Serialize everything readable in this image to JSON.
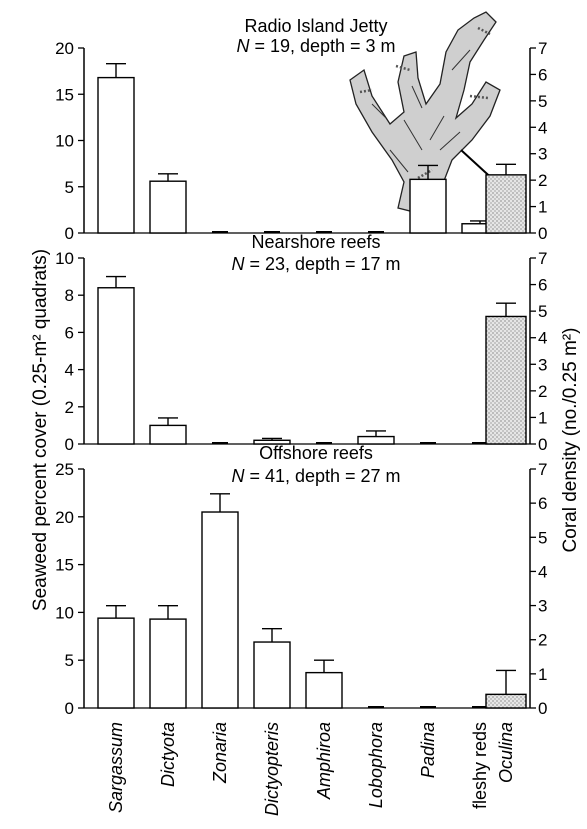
{
  "chart_data": {
    "type": "bar",
    "ylabel_left": "Seaweed percent cover (0.25-m² quadrats)",
    "ylabel_right": "Coral density (no./0.25 m²)",
    "categories": [
      "Sargassum",
      "Dictyota",
      "Zonaria",
      "Dictyopteris",
      "Amphiroa",
      "Lobophora",
      "Padina",
      "fleshy reds",
      "Oculina"
    ],
    "italic_categories": [
      "Sargassum",
      "Dictyota",
      "Zonaria",
      "Dictyopteris",
      "Amphiroa",
      "Lobophora",
      "Padina",
      "Oculina"
    ],
    "coral_category": "Oculina",
    "panels": [
      {
        "title": "Radio Island Jetty",
        "subtitle_n": "N",
        "subtitle_rest": " = 19, depth = 3 m",
        "left_ylim": [
          0,
          20
        ],
        "left_ticks": [
          0,
          5,
          10,
          15,
          20
        ],
        "right_ylim": [
          0,
          7
        ],
        "right_ticks": [
          0,
          1,
          2,
          3,
          4,
          5,
          6,
          7
        ],
        "seaweed_values": [
          16.8,
          5.6,
          0,
          0,
          0,
          0,
          5.8,
          1.0
        ],
        "seaweed_errors": [
          1.5,
          0.8,
          0,
          0,
          0,
          0,
          1.5,
          0.3
        ],
        "coral_value": 2.2,
        "coral_error": 0.4
      },
      {
        "title": "Nearshore reefs",
        "subtitle_n": "N",
        "subtitle_rest": " = 23, depth = 17 m",
        "left_ylim": [
          0,
          10
        ],
        "left_ticks": [
          0,
          2,
          4,
          6,
          8,
          10
        ],
        "right_ylim": [
          0,
          7
        ],
        "right_ticks": [
          0,
          1,
          2,
          3,
          4,
          5,
          6,
          7
        ],
        "seaweed_values": [
          8.4,
          1.0,
          0,
          0.2,
          0,
          0.4,
          0,
          0
        ],
        "seaweed_errors": [
          0.6,
          0.4,
          0,
          0.1,
          0,
          0.3,
          0,
          0
        ],
        "coral_value": 4.8,
        "coral_error": 0.5
      },
      {
        "title": "Offshore reefs",
        "subtitle_n": "N",
        "subtitle_rest": " = 41, depth = 27 m",
        "left_ylim": [
          0,
          25
        ],
        "left_ticks": [
          0,
          5,
          10,
          15,
          20,
          25
        ],
        "right_ylim": [
          0,
          7
        ],
        "right_ticks": [
          0,
          1,
          2,
          3,
          4,
          5,
          6,
          7
        ],
        "seaweed_values": [
          9.4,
          9.3,
          20.5,
          6.9,
          3.7,
          0,
          0,
          0
        ],
        "seaweed_errors": [
          1.3,
          1.4,
          1.9,
          1.4,
          1.3,
          0,
          0,
          0
        ],
        "coral_value": 0.4,
        "coral_error": 0.7
      }
    ],
    "grid": false,
    "bar_fill_seaweed": "#ffffff",
    "bar_fill_coral": "#d8d8d8",
    "icon": "coral-colony-illustration-icon"
  }
}
